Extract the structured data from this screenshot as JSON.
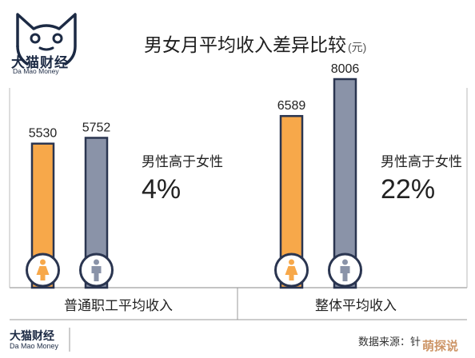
{
  "brand": {
    "name": "大猫财经",
    "sub": "Da Mao Money"
  },
  "title": "男女月平均收入差异比较",
  "unit": "(元)",
  "chart_data": [
    {
      "type": "bar",
      "category": "普通职工平均收入",
      "series": [
        {
          "name": "女性",
          "value": 5530,
          "color": "#f7a84a",
          "icon": "female-icon"
        },
        {
          "name": "男性",
          "value": 5752,
          "color": "#8a93a8",
          "icon": "male-icon"
        }
      ],
      "annotation_label": "男性高于女性",
      "annotation_value": "4%"
    },
    {
      "type": "bar",
      "category": "整体平均收入",
      "series": [
        {
          "name": "女性",
          "value": 6589,
          "color": "#f7a84a",
          "icon": "female-icon"
        },
        {
          "name": "男性",
          "value": 8006,
          "color": "#8a93a8",
          "icon": "male-icon"
        }
      ],
      "annotation_label": "男性高于女性",
      "annotation_value": "22%"
    }
  ],
  "footer": {
    "brand": "大猫财经",
    "sub": "Da Mao Money",
    "source": "数据来源：针"
  },
  "watermark": "萌探说"
}
